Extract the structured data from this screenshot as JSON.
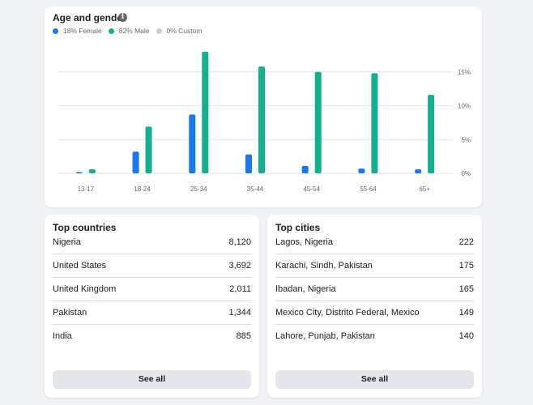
{
  "age_gender": {
    "title": "Age and gender",
    "legend": [
      {
        "label": "18% Female",
        "color": "#1877f2"
      },
      {
        "label": "82% Male",
        "color": "#12b08f"
      },
      {
        "label": "0% Custom",
        "color": "#c9ccd1"
      }
    ]
  },
  "chart_data": {
    "type": "bar",
    "title": "Age and gender",
    "categories": [
      "13-17",
      "18-24",
      "25-34",
      "35-44",
      "45-54",
      "55-64",
      "65+"
    ],
    "series": [
      {
        "name": "18% Female",
        "color": "#1877f2",
        "values": [
          0.2,
          3.2,
          8.7,
          2.8,
          1.1,
          0.7,
          0.6
        ]
      },
      {
        "name": "82% Male",
        "color": "#12b08f",
        "values": [
          0.6,
          6.9,
          18.0,
          15.8,
          15.0,
          14.8,
          11.6
        ]
      }
    ],
    "y_ticks": [
      "15%",
      "10%",
      "5%",
      "0%"
    ],
    "ylim": [
      0,
      18
    ],
    "grid": true,
    "y_axis_side": "right"
  },
  "top_countries": {
    "title": "Top countries",
    "rows": [
      {
        "label": "Nigeria",
        "value": "8,120"
      },
      {
        "label": "United States",
        "value": "3,692"
      },
      {
        "label": "United Kingdom",
        "value": "2,011"
      },
      {
        "label": "Pakistan",
        "value": "1,344"
      },
      {
        "label": "India",
        "value": "885"
      }
    ],
    "see_all": "See all"
  },
  "top_cities": {
    "title": "Top cities",
    "rows": [
      {
        "label": "Lagos, Nigeria",
        "value": "222"
      },
      {
        "label": "Karachi, Sindh, Pakistan",
        "value": "175"
      },
      {
        "label": "Ibadan, Nigeria",
        "value": "165"
      },
      {
        "label": "Mexico City, Distrito Federal, Mexico",
        "value": "149"
      },
      {
        "label": "Lahore, Punjab, Pakistan",
        "value": "140"
      }
    ],
    "see_all": "See all"
  }
}
